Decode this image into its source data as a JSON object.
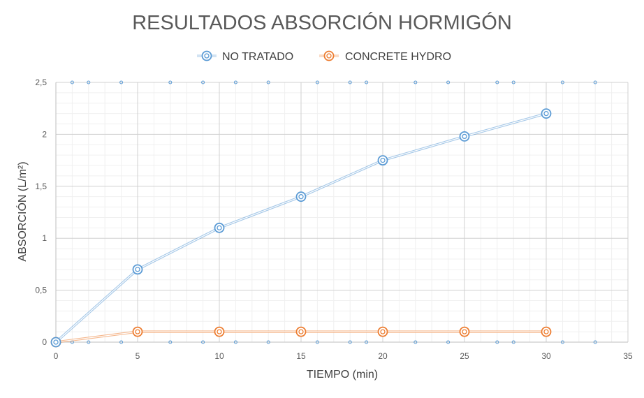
{
  "chart_data": {
    "type": "scatter",
    "title": "RESULTADOS ABSORCIÓN HORMIGÓN",
    "xlabel": "TIEMPO (min)",
    "ylabel": "ABSORCIÓN  (L/m²)",
    "xlim": [
      0,
      35
    ],
    "ylim": [
      0,
      2.5
    ],
    "x_ticks": [
      0,
      5,
      10,
      15,
      20,
      25,
      30,
      35
    ],
    "x_tick_labels": [
      "0",
      "5",
      "10",
      "15",
      "20",
      "25",
      "30",
      "35"
    ],
    "y_ticks": [
      0,
      0.5,
      1,
      1.5,
      2,
      2.5
    ],
    "y_tick_labels": [
      "0",
      "0,5",
      "1",
      "1,5",
      "2",
      "2,5"
    ],
    "x_minor_step": 1,
    "y_minor_step": 0.1,
    "grid": true,
    "legend_position": "top-center",
    "edge_markers_x": [
      1,
      2,
      4,
      7,
      9,
      11,
      13,
      16,
      18,
      19,
      22,
      24,
      27,
      28,
      31,
      33
    ],
    "series": [
      {
        "name": "NO TRATADO",
        "color": "#5b9bd5",
        "x": [
          0,
          5,
          10,
          15,
          20,
          25,
          30
        ],
        "y": [
          0,
          0.7,
          1.1,
          1.4,
          1.75,
          1.98,
          2.2
        ]
      },
      {
        "name": "CONCRETE HYDRO",
        "color": "#ed7d31",
        "x": [
          0,
          5,
          10,
          15,
          20,
          25,
          30
        ],
        "y": [
          0,
          0.1,
          0.1,
          0.1,
          0.1,
          0.1,
          0.1
        ]
      }
    ]
  }
}
